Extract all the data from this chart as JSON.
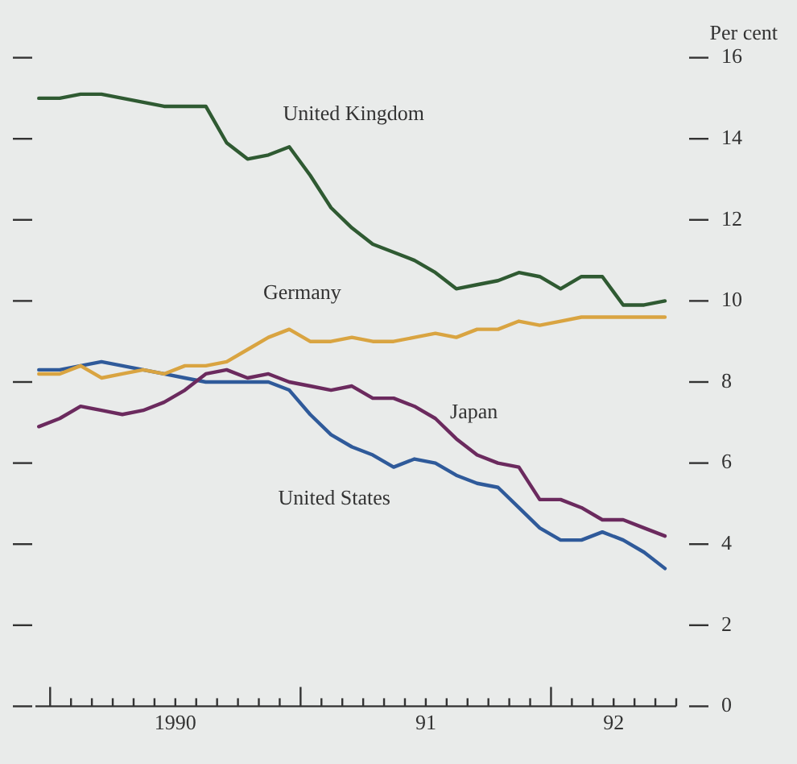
{
  "chart_data": {
    "type": "line",
    "ylabel": "Per cent",
    "x": [
      "1989-12-15",
      "1990-01-15",
      "1990-02-15",
      "1990-03-15",
      "1990-04-15",
      "1990-05-15",
      "1990-06-15",
      "1990-07-15",
      "1990-08-15",
      "1990-09-15",
      "1990-10-15",
      "1990-11-15",
      "1990-12-15",
      "1991-01-15",
      "1991-02-15",
      "1991-03-15",
      "1991-04-15",
      "1991-05-15",
      "1991-06-15",
      "1991-07-15",
      "1991-08-15",
      "1991-09-15",
      "1991-10-15",
      "1991-11-15",
      "1991-12-15",
      "1992-01-15",
      "1992-02-15",
      "1992-03-15",
      "1992-04-15",
      "1992-05-15",
      "1992-06-15"
    ],
    "series": [
      {
        "name": "United Kingdom",
        "color": "#2f5a32",
        "values": [
          15.0,
          15.0,
          15.1,
          15.1,
          15.0,
          14.9,
          14.8,
          14.8,
          14.8,
          13.9,
          13.5,
          13.6,
          13.8,
          13.1,
          12.3,
          11.8,
          11.4,
          11.2,
          11.0,
          10.7,
          10.3,
          10.4,
          10.5,
          10.7,
          10.6,
          10.3,
          10.6,
          10.6,
          9.9,
          9.9,
          10.0
        ]
      },
      {
        "name": "Germany",
        "color": "#d9a441",
        "values": [
          8.2,
          8.2,
          8.4,
          8.1,
          8.2,
          8.3,
          8.2,
          8.4,
          8.4,
          8.5,
          8.8,
          9.1,
          9.3,
          9.0,
          9.0,
          9.1,
          9.0,
          9.0,
          9.1,
          9.2,
          9.1,
          9.3,
          9.3,
          9.5,
          9.4,
          9.5,
          9.6,
          9.6,
          9.6,
          9.6,
          9.6
        ]
      },
      {
        "name": "Japan",
        "color": "#6b2a5e",
        "values": [
          6.9,
          7.1,
          7.4,
          7.3,
          7.2,
          7.3,
          7.5,
          7.8,
          8.2,
          8.3,
          8.1,
          8.2,
          8.0,
          7.9,
          7.8,
          7.9,
          7.6,
          7.6,
          7.4,
          7.1,
          6.6,
          6.2,
          6.0,
          5.9,
          5.1,
          5.1,
          4.9,
          4.6,
          4.6,
          4.4,
          4.2
        ]
      },
      {
        "name": "United States",
        "color": "#2f5a9a",
        "values": [
          8.3,
          8.3,
          8.4,
          8.5,
          8.4,
          8.3,
          8.2,
          8.1,
          8.0,
          8.0,
          8.0,
          8.0,
          7.8,
          7.2,
          6.7,
          6.4,
          6.2,
          5.9,
          6.1,
          6.0,
          5.7,
          5.5,
          5.4,
          4.9,
          4.4,
          4.1,
          4.1,
          4.3,
          4.1,
          3.8,
          3.4
        ]
      }
    ],
    "xlim": [
      "1989-12-10",
      "1992-07-01"
    ],
    "xticks": [
      {
        "value": "1990-01-01",
        "label": null
      },
      {
        "value": "1990-02-01",
        "label": null
      },
      {
        "value": "1990-03-01",
        "label": null
      },
      {
        "value": "1990-04-01",
        "label": null
      },
      {
        "value": "1990-05-01",
        "label": null
      },
      {
        "value": "1990-06-01",
        "label": null
      },
      {
        "value": "1990-07-01",
        "label": "1990"
      },
      {
        "value": "1990-08-01",
        "label": null
      },
      {
        "value": "1990-09-01",
        "label": null
      },
      {
        "value": "1990-10-01",
        "label": null
      },
      {
        "value": "1990-11-01",
        "label": null
      },
      {
        "value": "1990-12-01",
        "label": null
      },
      {
        "value": "1991-01-01",
        "label": null
      },
      {
        "value": "1991-02-01",
        "label": null
      },
      {
        "value": "1991-03-01",
        "label": null
      },
      {
        "value": "1991-04-01",
        "label": null
      },
      {
        "value": "1991-05-01",
        "label": null
      },
      {
        "value": "1991-06-01",
        "label": null
      },
      {
        "value": "1991-07-01",
        "label": "91"
      },
      {
        "value": "1991-08-01",
        "label": null
      },
      {
        "value": "1991-09-01",
        "label": null
      },
      {
        "value": "1991-10-01",
        "label": null
      },
      {
        "value": "1991-11-01",
        "label": null
      },
      {
        "value": "1991-12-01",
        "label": null
      },
      {
        "value": "1992-01-01",
        "label": null
      },
      {
        "value": "1992-02-01",
        "label": null
      },
      {
        "value": "1992-03-01",
        "label": null
      },
      {
        "value": "1992-04-01",
        "label": "92"
      },
      {
        "value": "1992-05-01",
        "label": null
      },
      {
        "value": "1992-06-01",
        "label": null
      },
      {
        "value": "1992-07-01",
        "label": null
      }
    ],
    "ylim": [
      0,
      16
    ],
    "yticks": [
      0,
      2,
      4,
      6,
      8,
      10,
      12,
      14,
      16
    ],
    "grid": false,
    "legend": false,
    "marker": "none",
    "line_style": "solid"
  }
}
